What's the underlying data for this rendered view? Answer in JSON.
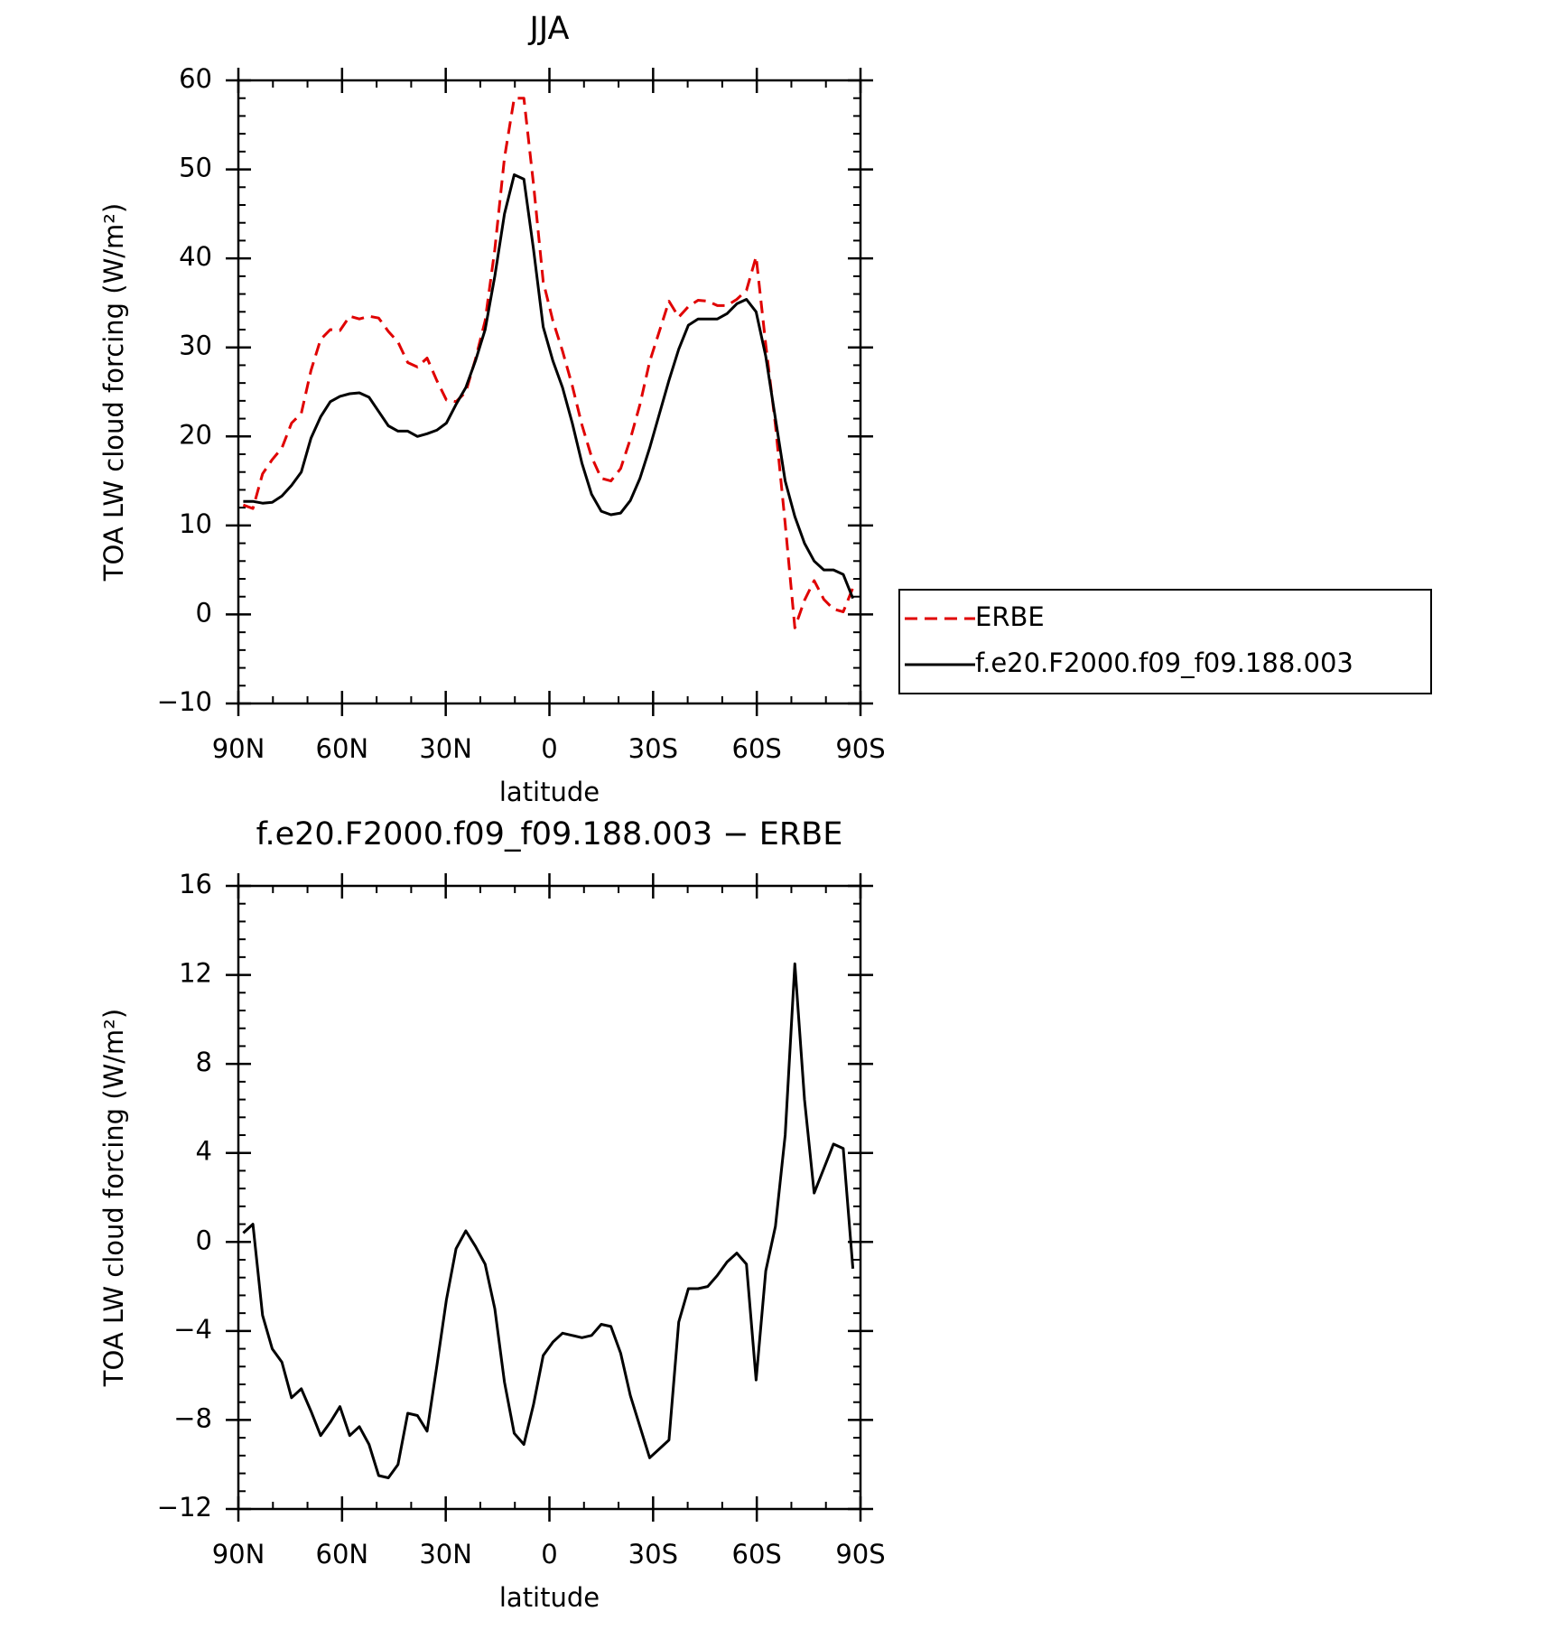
{
  "chart_data": [
    {
      "type": "line",
      "title": "JJA",
      "xlabel": "latitude",
      "ylabel": "TOA LW cloud forcing (W/m²)",
      "x": [
        88.6,
        85.8,
        83.0,
        80.2,
        77.4,
        74.6,
        71.8,
        69.0,
        66.2,
        63.4,
        60.6,
        57.8,
        55.0,
        52.2,
        49.4,
        46.6,
        43.8,
        41.0,
        38.2,
        35.4,
        32.6,
        29.8,
        27.0,
        24.2,
        21.4,
        18.6,
        15.8,
        13.0,
        10.2,
        7.4,
        4.6,
        1.8,
        -1.0,
        -3.8,
        -6.6,
        -9.4,
        -12.2,
        -15.0,
        -17.8,
        -20.6,
        -23.4,
        -26.2,
        -29.0,
        -31.8,
        -34.6,
        -37.4,
        -40.2,
        -43.0,
        -45.8,
        -48.6,
        -51.4,
        -54.2,
        -57.0,
        -59.8,
        -62.6,
        -65.4,
        -68.2,
        -71.0,
        -73.8,
        -76.6,
        -79.4,
        -82.2,
        -85.0,
        -87.8
      ],
      "series": [
        {
          "name": "ERBE",
          "color": "#e00000",
          "dash": "dashed",
          "values": [
            12.3,
            11.9,
            15.8,
            17.4,
            18.7,
            21.5,
            22.6,
            27.4,
            30.9,
            32.0,
            31.9,
            33.5,
            33.2,
            33.5,
            33.3,
            31.8,
            30.6,
            28.3,
            27.8,
            28.8,
            26.3,
            24.1,
            23.9,
            25.0,
            28.7,
            33.0,
            41.0,
            51.3,
            58.0,
            58.0,
            48.3,
            37.4,
            33.0,
            29.6,
            25.7,
            21.3,
            17.7,
            15.3,
            15.0,
            16.4,
            19.7,
            23.6,
            28.4,
            31.8,
            35.2,
            33.4,
            34.6,
            35.3,
            35.2,
            34.7,
            34.7,
            35.4,
            36.4,
            40.2,
            30.3,
            21.3,
            10.2,
            -1.5,
            1.6,
            3.8,
            1.7,
            0.6,
            0.3,
            3.0
          ]
        },
        {
          "name": "f.e20.F2000.f09_f09.188.003",
          "color": "#000000",
          "dash": "solid",
          "values": [
            12.7,
            12.7,
            12.5,
            12.6,
            13.3,
            14.5,
            16.0,
            19.8,
            22.2,
            23.9,
            24.5,
            24.8,
            24.9,
            24.4,
            22.8,
            21.2,
            20.6,
            20.6,
            20.0,
            20.3,
            20.7,
            21.5,
            23.6,
            25.5,
            28.5,
            32.0,
            38.0,
            45.0,
            49.4,
            48.9,
            41.0,
            32.3,
            28.5,
            25.5,
            21.5,
            17.0,
            13.5,
            11.6,
            11.2,
            11.4,
            12.8,
            15.3,
            18.7,
            22.5,
            26.3,
            29.8,
            32.5,
            33.2,
            33.2,
            33.2,
            33.8,
            34.9,
            35.4,
            34.0,
            29.0,
            22.0,
            15.0,
            11.0,
            8.0,
            6.0,
            5.0,
            5.0,
            4.5,
            1.8
          ]
        }
      ],
      "xlim": [
        90,
        -90
      ],
      "xticks": [
        {
          "value": 90,
          "label": "90N"
        },
        {
          "value": 60,
          "label": "60N"
        },
        {
          "value": 30,
          "label": "30N"
        },
        0,
        {
          "value": -30,
          "label": "30S"
        },
        {
          "value": -60,
          "label": "60S"
        },
        {
          "value": -90,
          "label": "90S"
        }
      ],
      "ylim": [
        -10,
        60
      ],
      "yticks": [
        {
          "value": -10,
          "label": "−10"
        },
        0,
        10,
        20,
        30,
        40,
        50,
        60
      ],
      "legend": "right"
    },
    {
      "type": "line",
      "title": "f.e20.F2000.f09_f09.188.003 − ERBE",
      "xlabel": "latitude",
      "ylabel": "TOA LW cloud forcing (W/m²)",
      "x": [
        88.6,
        85.8,
        83.0,
        80.2,
        77.4,
        74.6,
        71.8,
        69.0,
        66.2,
        63.4,
        60.6,
        57.8,
        55.0,
        52.2,
        49.4,
        46.6,
        43.8,
        41.0,
        38.2,
        35.4,
        32.6,
        29.8,
        27.0,
        24.2,
        21.4,
        18.6,
        15.8,
        13.0,
        10.2,
        7.4,
        4.6,
        1.8,
        -1.0,
        -3.8,
        -6.6,
        -9.4,
        -12.2,
        -15.0,
        -17.8,
        -20.6,
        -23.4,
        -26.2,
        -29.0,
        -31.8,
        -34.6,
        -37.4,
        -40.2,
        -43.0,
        -45.8,
        -48.6,
        -51.4,
        -54.2,
        -57.0,
        -59.8,
        -62.6,
        -65.4,
        -68.2,
        -71.0,
        -73.8,
        -76.6,
        -79.4,
        -82.2,
        -85.0,
        -87.8
      ],
      "series": [
        {
          "color": "#000000",
          "dash": "solid",
          "values": [
            0.4,
            0.8,
            -3.3,
            -4.8,
            -5.4,
            -7.0,
            -6.6,
            -7.6,
            -8.7,
            -8.1,
            -7.4,
            -8.7,
            -8.3,
            -9.1,
            -10.5,
            -10.6,
            -10.0,
            -7.7,
            -7.8,
            -8.5,
            -5.6,
            -2.6,
            -0.3,
            0.5,
            -0.2,
            -1.0,
            -3.0,
            -6.3,
            -8.6,
            -9.1,
            -7.3,
            -5.1,
            -4.5,
            -4.1,
            -4.2,
            -4.3,
            -4.2,
            -3.7,
            -3.8,
            -5.0,
            -6.9,
            -8.3,
            -9.7,
            -9.3,
            -8.9,
            -3.6,
            -2.1,
            -2.1,
            -2.0,
            -1.5,
            -0.9,
            -0.5,
            -1.0,
            -6.2,
            -1.3,
            0.7,
            4.8,
            12.5,
            6.4,
            2.2,
            3.3,
            4.4,
            4.2,
            -1.2
          ]
        }
      ],
      "xlim": [
        90,
        -90
      ],
      "xticks": [
        {
          "value": 90,
          "label": "90N"
        },
        {
          "value": 60,
          "label": "60N"
        },
        {
          "value": 30,
          "label": "30N"
        },
        0,
        {
          "value": -30,
          "label": "30S"
        },
        {
          "value": -60,
          "label": "60S"
        },
        {
          "value": -90,
          "label": "90S"
        }
      ],
      "ylim": [
        -12,
        16
      ],
      "yticks": [
        {
          "value": -12,
          "label": "−12"
        },
        {
          "value": -8,
          "label": "−8"
        },
        {
          "value": -4,
          "label": "−4"
        },
        0,
        4,
        8,
        12,
        16
      ]
    }
  ]
}
